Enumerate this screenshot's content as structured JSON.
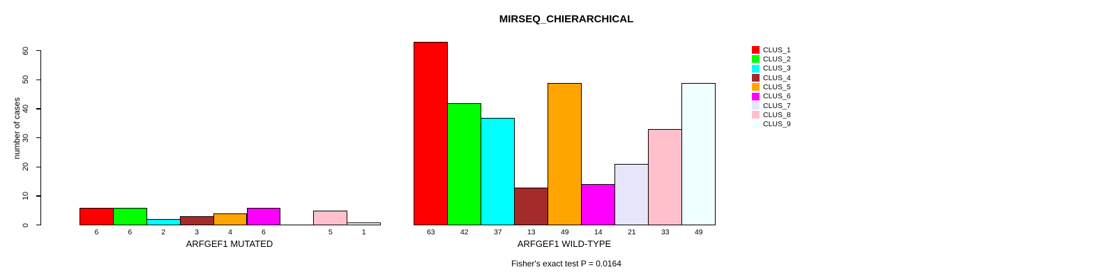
{
  "chart_data": {
    "type": "bar",
    "title": "MIRSEQ_CHIERARCHICAL",
    "ylabel": "number of cases",
    "ylim": [
      0,
      60
    ],
    "yticks": [
      0,
      10,
      20,
      30,
      40,
      50,
      60
    ],
    "grid": false,
    "legend_position": "right",
    "clusters": [
      "CLUS_1",
      "CLUS_2",
      "CLUS_3",
      "CLUS_4",
      "CLUS_5",
      "CLUS_6",
      "CLUS_7",
      "CLUS_8",
      "CLUS_9"
    ],
    "colors": [
      "#FF0000",
      "#00FF00",
      "#00FFFF",
      "#A52A2A",
      "#FFA500",
      "#FF00FF",
      "#E6E6FA",
      "#FFC0CB",
      "#F0FFFF"
    ],
    "groups": [
      {
        "label": "ARFGEF1 MUTATED",
        "values": [
          6,
          6,
          2,
          3,
          4,
          6,
          0,
          5,
          1
        ],
        "bar_labels": [
          "6",
          "6",
          "2",
          "3",
          "4",
          "6",
          "",
          "5",
          "1"
        ]
      },
      {
        "label": "ARFGEF1 WILD-TYPE",
        "values": [
          63,
          42,
          37,
          13,
          49,
          14,
          21,
          33,
          49
        ],
        "bar_labels": [
          "63",
          "42",
          "37",
          "13",
          "49",
          "14",
          "21",
          "33",
          "49"
        ]
      }
    ],
    "footnote": "Fisher's exact test P = 0.0164"
  }
}
